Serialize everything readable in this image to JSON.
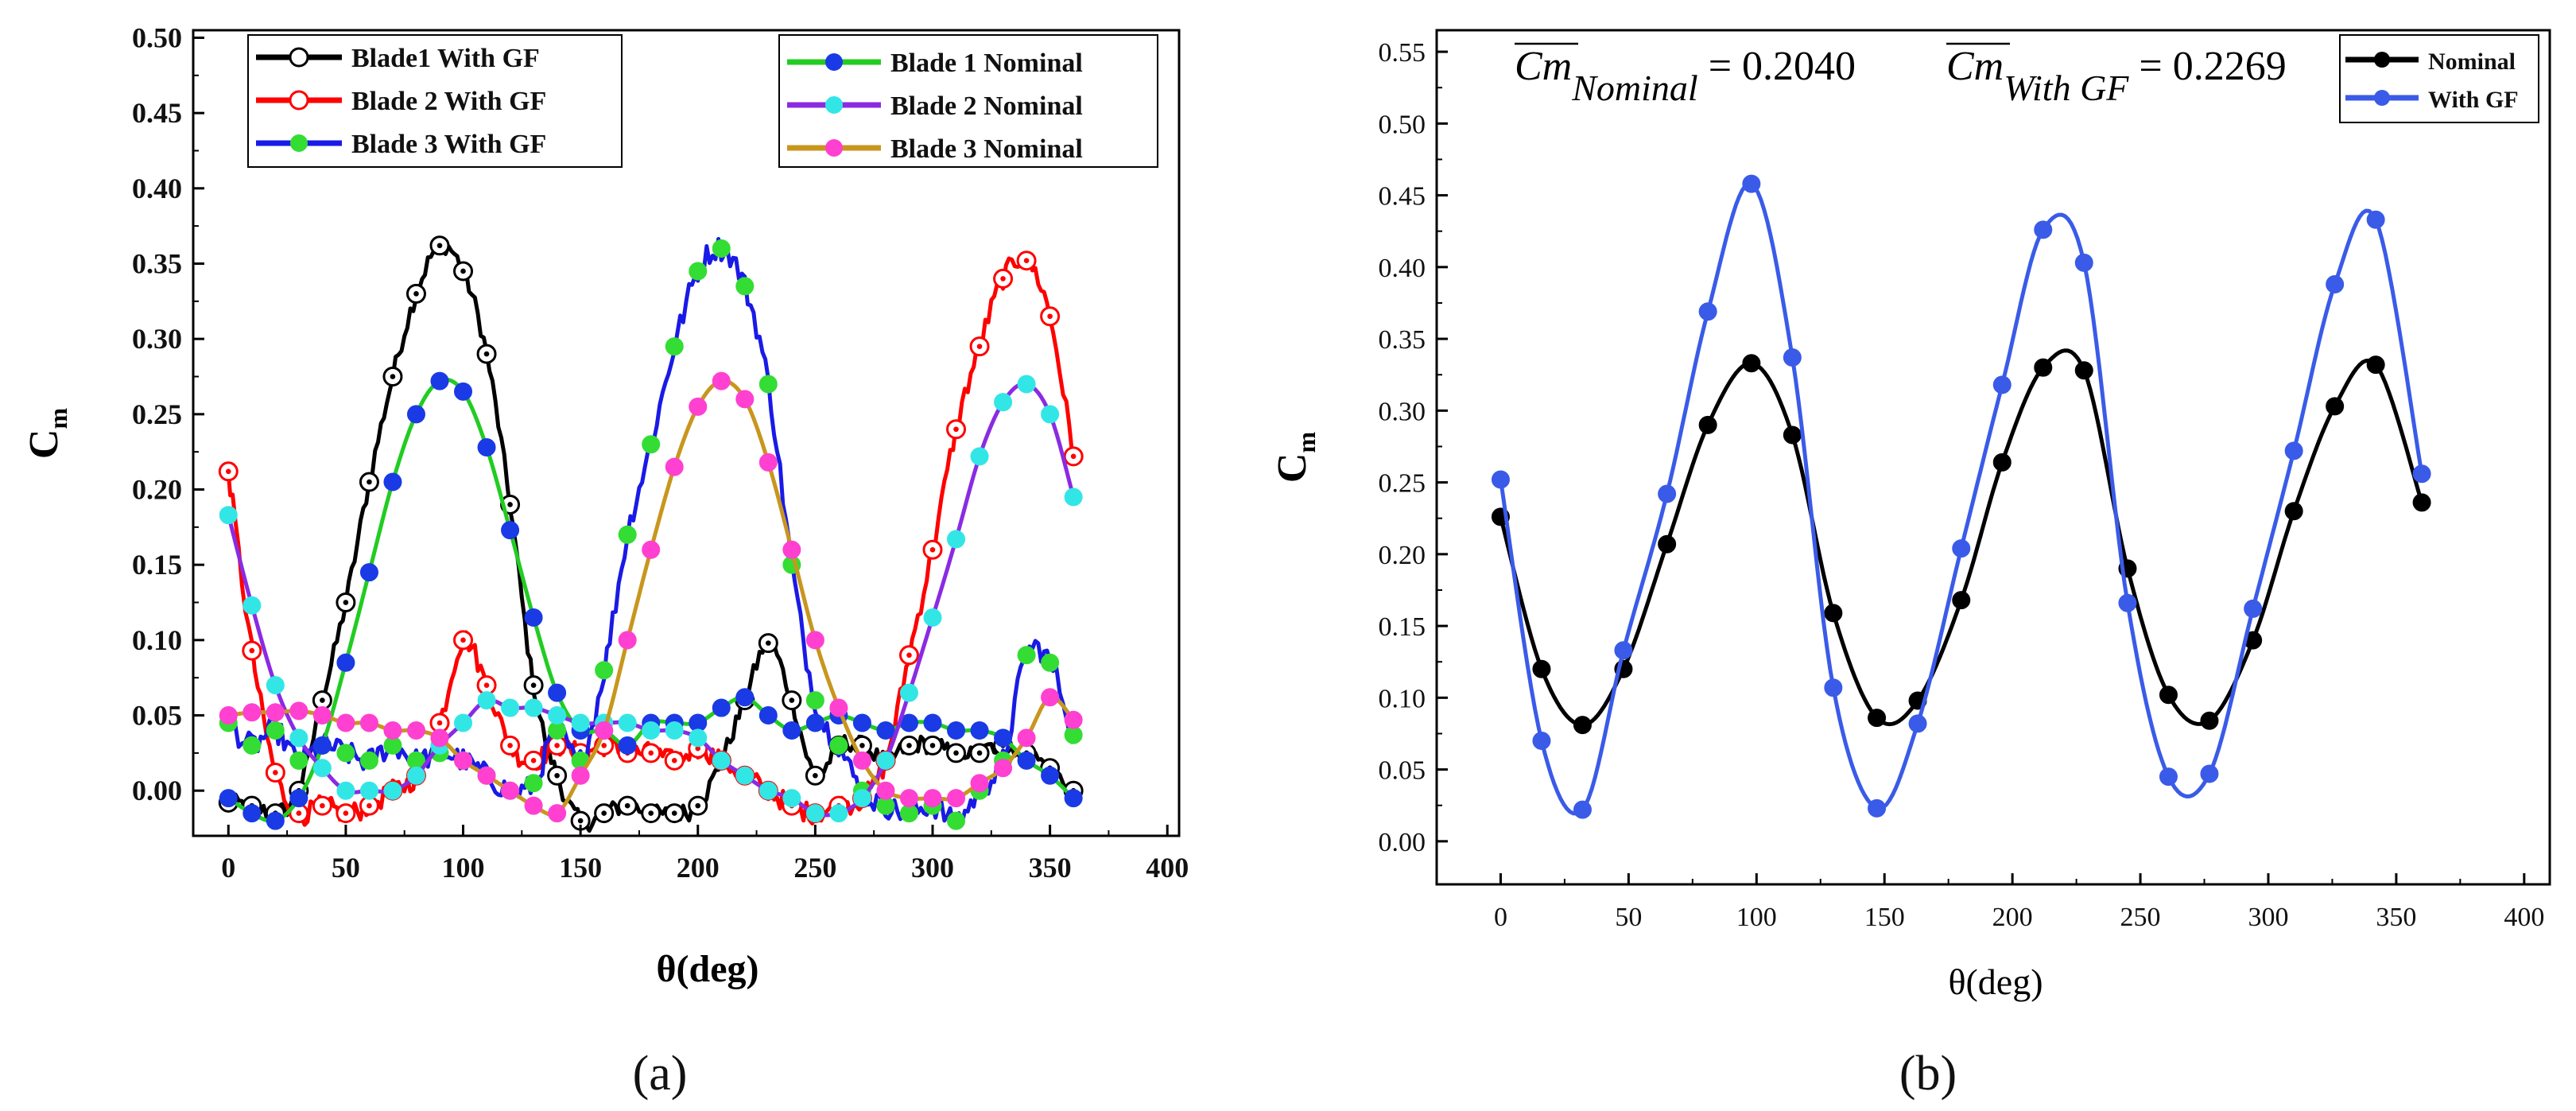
{
  "chart_data": [
    {
      "type": "line",
      "panel_label": "(a)",
      "xlabel": "θ(deg)",
      "ylabel": "C",
      "ylabel_sub": "m",
      "xlim": [
        -15,
        405
      ],
      "ylim": [
        -0.03,
        0.505
      ],
      "xticks": [
        0,
        50,
        100,
        150,
        200,
        250,
        300,
        350,
        400
      ],
      "yticks": [
        0.0,
        0.05,
        0.1,
        0.15,
        0.2,
        0.25,
        0.3,
        0.35,
        0.4,
        0.45,
        0.5
      ],
      "series": [
        {
          "name": "Blade1 With GF",
          "color": "#000000",
          "marker_color": "#000000",
          "hollow": true,
          "noise": 0.006,
          "x": [
            0,
            10,
            20,
            30,
            40,
            50,
            60,
            70,
            80,
            90,
            100,
            110,
            120,
            130,
            140,
            150,
            160,
            170,
            180,
            190,
            200,
            210,
            220,
            230,
            240,
            250,
            260,
            270,
            280,
            290,
            300,
            310,
            320,
            330,
            340,
            350,
            360
          ],
          "y": [
            -0.008,
            -0.01,
            -0.015,
            0.0,
            0.06,
            0.125,
            0.205,
            0.275,
            0.33,
            0.362,
            0.345,
            0.29,
            0.19,
            0.07,
            0.01,
            -0.02,
            -0.015,
            -0.01,
            -0.015,
            -0.015,
            -0.01,
            0.02,
            0.06,
            0.098,
            0.06,
            0.01,
            0.03,
            0.03,
            0.02,
            0.03,
            0.03,
            0.025,
            0.025,
            0.03,
            0.025,
            0.015,
            0.0
          ]
        },
        {
          "name": "Blade 2 With GF",
          "color": "#ff0000",
          "marker_color": "#ff0000",
          "hollow": true,
          "noise": 0.007,
          "x": [
            0,
            10,
            20,
            30,
            40,
            50,
            60,
            70,
            80,
            90,
            100,
            110,
            120,
            130,
            140,
            150,
            160,
            170,
            180,
            190,
            200,
            210,
            220,
            230,
            240,
            250,
            260,
            270,
            280,
            290,
            300,
            310,
            320,
            330,
            340,
            350,
            360
          ],
          "y": [
            0.212,
            0.093,
            0.012,
            -0.015,
            -0.01,
            -0.015,
            -0.01,
            0.0,
            0.01,
            0.045,
            0.1,
            0.07,
            0.03,
            0.02,
            0.03,
            0.025,
            0.03,
            0.025,
            0.025,
            0.02,
            0.028,
            0.02,
            0.01,
            0.0,
            -0.01,
            -0.015,
            -0.01,
            -0.005,
            0.02,
            0.09,
            0.16,
            0.24,
            0.295,
            0.34,
            0.352,
            0.315,
            0.222
          ]
        },
        {
          "name": "Blade 3 With GF",
          "color": "#1a1ae6",
          "marker_color": "#33dd33",
          "hollow": false,
          "noise": 0.008,
          "x": [
            0,
            10,
            20,
            30,
            40,
            50,
            60,
            70,
            80,
            90,
            100,
            110,
            120,
            130,
            140,
            150,
            160,
            170,
            180,
            190,
            200,
            210,
            220,
            230,
            240,
            250,
            260,
            270,
            280,
            290,
            300,
            310,
            320,
            330,
            340,
            350,
            360
          ],
          "y": [
            0.045,
            0.03,
            0.04,
            0.02,
            0.03,
            0.025,
            0.02,
            0.03,
            0.02,
            0.025,
            0.02,
            0.01,
            0.0,
            0.005,
            0.04,
            0.02,
            0.08,
            0.17,
            0.23,
            0.295,
            0.345,
            0.36,
            0.335,
            0.27,
            0.15,
            0.06,
            0.03,
            0.0,
            -0.01,
            -0.015,
            -0.01,
            -0.02,
            0.0,
            0.02,
            0.09,
            0.085,
            0.037
          ]
        },
        {
          "name": "Blade 1 Nominal",
          "color": "#22cc22",
          "marker_color": "#1a3ae6",
          "hollow": false,
          "noise": 0.0,
          "x": [
            0,
            10,
            20,
            30,
            40,
            50,
            60,
            70,
            80,
            90,
            100,
            110,
            120,
            130,
            140,
            150,
            160,
            170,
            180,
            190,
            200,
            210,
            220,
            230,
            240,
            250,
            260,
            270,
            280,
            290,
            300,
            310,
            320,
            330,
            340,
            350,
            360
          ],
          "y": [
            -0.005,
            -0.015,
            -0.02,
            -0.005,
            0.03,
            0.085,
            0.145,
            0.205,
            0.25,
            0.272,
            0.265,
            0.228,
            0.173,
            0.115,
            0.065,
            0.04,
            0.04,
            0.03,
            0.045,
            0.045,
            0.045,
            0.055,
            0.062,
            0.05,
            0.04,
            0.045,
            0.05,
            0.045,
            0.04,
            0.045,
            0.045,
            0.04,
            0.04,
            0.035,
            0.02,
            0.01,
            -0.005
          ]
        },
        {
          "name": "Blade 2 Nominal",
          "color": "#8a2be2",
          "marker_color": "#33e6e6",
          "hollow": false,
          "noise": 0.0,
          "x": [
            0,
            10,
            20,
            30,
            40,
            50,
            60,
            70,
            80,
            90,
            100,
            110,
            120,
            130,
            140,
            150,
            160,
            170,
            180,
            190,
            200,
            210,
            220,
            230,
            240,
            250,
            260,
            270,
            280,
            290,
            300,
            310,
            320,
            330,
            340,
            350,
            360
          ],
          "y": [
            0.183,
            0.123,
            0.07,
            0.035,
            0.015,
            0.0,
            0.0,
            0.0,
            0.01,
            0.03,
            0.045,
            0.06,
            0.055,
            0.055,
            0.05,
            0.045,
            0.045,
            0.045,
            0.04,
            0.04,
            0.035,
            0.02,
            0.01,
            0.0,
            -0.005,
            -0.015,
            -0.015,
            -0.005,
            0.02,
            0.065,
            0.115,
            0.167,
            0.222,
            0.258,
            0.27,
            0.25,
            0.195
          ]
        },
        {
          "name": "Blade 3 Nominal",
          "color": "#c8961e",
          "marker_color": "#ff40d0",
          "hollow": false,
          "noise": 0.0,
          "x": [
            0,
            10,
            20,
            30,
            40,
            50,
            60,
            70,
            80,
            90,
            100,
            110,
            120,
            130,
            140,
            150,
            160,
            170,
            180,
            190,
            200,
            210,
            220,
            230,
            240,
            250,
            260,
            270,
            280,
            290,
            300,
            310,
            320,
            330,
            340,
            350,
            360
          ],
          "y": [
            0.05,
            0.052,
            0.052,
            0.053,
            0.05,
            0.045,
            0.045,
            0.04,
            0.04,
            0.035,
            0.02,
            0.01,
            0.0,
            -0.01,
            -0.015,
            0.01,
            0.04,
            0.1,
            0.16,
            0.215,
            0.255,
            0.272,
            0.26,
            0.218,
            0.16,
            0.1,
            0.055,
            0.02,
            0.0,
            -0.005,
            -0.005,
            -0.005,
            0.005,
            0.015,
            0.035,
            0.062,
            0.047
          ]
        }
      ]
    },
    {
      "type": "line",
      "panel_label": "(b)",
      "xlabel": "θ(deg)",
      "ylabel": "C",
      "ylabel_sub": "m",
      "xlim": [
        -25,
        410
      ],
      "ylim": [
        -0.03,
        0.565
      ],
      "xticks": [
        0,
        50,
        100,
        150,
        200,
        250,
        300,
        350,
        400
      ],
      "yticks": [
        0.0,
        0.05,
        0.1,
        0.15,
        0.2,
        0.25,
        0.3,
        0.35,
        0.4,
        0.45,
        0.5,
        0.55
      ],
      "annotations": [
        {
          "base": "Cm",
          "sub": "Nominal",
          "value": " = 0.2040"
        },
        {
          "base": "Cm",
          "sub": "With GF",
          "value": " = 0.2269"
        }
      ],
      "series": [
        {
          "name": "Nominal",
          "color": "#000000",
          "marker_color": "#000000",
          "x": [
            0,
            16,
            32,
            48,
            65,
            81,
            98,
            114,
            130,
            147,
            163,
            180,
            196,
            212,
            228,
            245,
            261,
            277,
            294,
            310,
            326,
            342,
            360
          ],
          "y": [
            0.226,
            0.12,
            0.081,
            0.12,
            0.207,
            0.29,
            0.333,
            0.283,
            0.159,
            0.086,
            0.098,
            0.168,
            0.264,
            0.33,
            0.328,
            0.19,
            0.102,
            0.084,
            0.14,
            0.23,
            0.303,
            0.332,
            0.236
          ]
        },
        {
          "name": "With GF",
          "color": "#3a5be8",
          "marker_color": "#3a5be8",
          "x": [
            0,
            16,
            32,
            48,
            65,
            81,
            98,
            114,
            130,
            147,
            163,
            180,
            196,
            212,
            228,
            245,
            261,
            277,
            294,
            310,
            326,
            342,
            360
          ],
          "y": [
            0.252,
            0.07,
            0.022,
            0.133,
            0.242,
            0.369,
            0.458,
            0.337,
            0.107,
            0.023,
            0.082,
            0.204,
            0.318,
            0.426,
            0.403,
            0.166,
            0.045,
            0.047,
            0.162,
            0.272,
            0.388,
            0.433,
            0.256
          ]
        }
      ]
    }
  ]
}
